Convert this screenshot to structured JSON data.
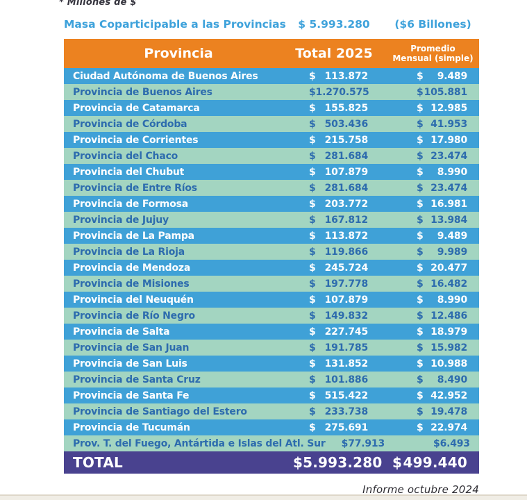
{
  "note_top": "* Millones de $",
  "summary": {
    "label": "Masa Coparticipable a las Provincias",
    "amount": "$ 5.993.280",
    "aside": "($6 Billones)"
  },
  "table": {
    "currency_symbol": "$",
    "headers": {
      "provincia": "Provincia",
      "total": "Total 2025",
      "promedio_line1": "Promedio",
      "promedio_line2": "Mensual (simple)"
    },
    "rows": [
      {
        "name": "Ciudad Autónoma de Buenos Aires",
        "total": "113.872",
        "promedio": "9.489"
      },
      {
        "name": "Provincia de Buenos Aires",
        "total": "1.270.575",
        "promedio": "105.881"
      },
      {
        "name": "Provincia de Catamarca",
        "total": "155.825",
        "promedio": "12.985"
      },
      {
        "name": "Provincia de Córdoba",
        "total": "503.436",
        "promedio": "41.953"
      },
      {
        "name": "Provincia de Corrientes",
        "total": "215.758",
        "promedio": "17.980"
      },
      {
        "name": "Provincia del Chaco",
        "total": "281.684",
        "promedio": "23.474"
      },
      {
        "name": "Provincia del Chubut",
        "total": "107.879",
        "promedio": "8.990"
      },
      {
        "name": "Provincia de Entre Ríos",
        "total": "281.684",
        "promedio": "23.474"
      },
      {
        "name": "Provincia de Formosa",
        "total": "203.772",
        "promedio": "16.981"
      },
      {
        "name": "Provincia de Jujuy",
        "total": "167.812",
        "promedio": "13.984"
      },
      {
        "name": "Provincia de La Pampa",
        "total": "113.872",
        "promedio": "9.489"
      },
      {
        "name": "Provincia de La Rioja",
        "total": "119.866",
        "promedio": "9.989"
      },
      {
        "name": "Provincia de Mendoza",
        "total": "245.724",
        "promedio": "20.477"
      },
      {
        "name": "Provincia de Misiones",
        "total": "197.778",
        "promedio": "16.482"
      },
      {
        "name": "Provincia del Neuquén",
        "total": "107.879",
        "promedio": "8.990"
      },
      {
        "name": "Provincia de Río Negro",
        "total": "149.832",
        "promedio": "12.486"
      },
      {
        "name": "Provincia de Salta",
        "total": "227.745",
        "promedio": "18.979"
      },
      {
        "name": "Provincia de San Juan",
        "total": "191.785",
        "promedio": "15.982"
      },
      {
        "name": "Provincia de San Luis",
        "total": "131.852",
        "promedio": "10.988"
      },
      {
        "name": "Provincia de Santa Cruz",
        "total": "101.886",
        "promedio": "8.490"
      },
      {
        "name": "Provincia de Santa Fe",
        "total": "515.422",
        "promedio": "42.952"
      },
      {
        "name": "Provincia de Santiago del Estero",
        "total": "233.738",
        "promedio": "19.478"
      },
      {
        "name": "Provincia de Tucumán",
        "total": "275.691",
        "promedio": "22.974"
      },
      {
        "name": "Prov. T. del Fuego, Antártida e Islas del Atl. Sur",
        "total": "77.913",
        "promedio": "6.493"
      }
    ],
    "total_row": {
      "label": "TOTAL",
      "total": "5.993.280",
      "promedio": "499.440"
    }
  },
  "footer_note": "Informe octubre 2024",
  "colors": {
    "header-orange": "#EC8220",
    "row-blue": "#3FA1D7",
    "row-green": "#A3D5C1",
    "row-green-text": "#2D6CAE",
    "total-purple": "#49428F",
    "title-blue": "#3EA2DB",
    "note-dark": "#35343E",
    "footer-dark": "#2E2D33",
    "band-line": "#DED7C9",
    "band-fill": "#F0EDE5"
  },
  "chart_data": {
    "type": "table",
    "title": "Masa Coparticipable a las Provincias",
    "units": "Millones de $",
    "summary_total": 5993280,
    "summary_total_display": "$ 5.993.280",
    "summary_approx": "($6 Billones)",
    "columns": [
      "Provincia",
      "Total 2025",
      "Promedio Mensual (simple)"
    ],
    "rows": [
      [
        "Ciudad Autónoma de Buenos Aires",
        113872,
        9489
      ],
      [
        "Provincia de Buenos Aires",
        1270575,
        105881
      ],
      [
        "Provincia de Catamarca",
        155825,
        12985
      ],
      [
        "Provincia de Córdoba",
        503436,
        41953
      ],
      [
        "Provincia de Corrientes",
        215758,
        17980
      ],
      [
        "Provincia del Chaco",
        281684,
        23474
      ],
      [
        "Provincia del Chubut",
        107879,
        8990
      ],
      [
        "Provincia de Entre Ríos",
        281684,
        23474
      ],
      [
        "Provincia de Formosa",
        203772,
        16981
      ],
      [
        "Provincia de Jujuy",
        167812,
        13984
      ],
      [
        "Provincia de La Pampa",
        113872,
        9489
      ],
      [
        "Provincia de La Rioja",
        119866,
        9989
      ],
      [
        "Provincia de Mendoza",
        245724,
        20477
      ],
      [
        "Provincia de Misiones",
        197778,
        16482
      ],
      [
        "Provincia del Neuquén",
        107879,
        8990
      ],
      [
        "Provincia de Río Negro",
        149832,
        12486
      ],
      [
        "Provincia de Salta",
        227745,
        18979
      ],
      [
        "Provincia de San Juan",
        191785,
        15982
      ],
      [
        "Provincia de San Luis",
        131852,
        10988
      ],
      [
        "Provincia de Santa Cruz",
        101886,
        8490
      ],
      [
        "Provincia de Santa Fe",
        515422,
        42952
      ],
      [
        "Provincia de Santiago del Estero",
        233738,
        19478
      ],
      [
        "Provincia de Tucumán",
        275691,
        22974
      ],
      [
        "Prov. T. del Fuego, Antártida e Islas del Atl. Sur",
        77913,
        6493
      ]
    ],
    "total_row": [
      "TOTAL",
      5993280,
      499440
    ],
    "footer": "Informe octubre 2024"
  }
}
